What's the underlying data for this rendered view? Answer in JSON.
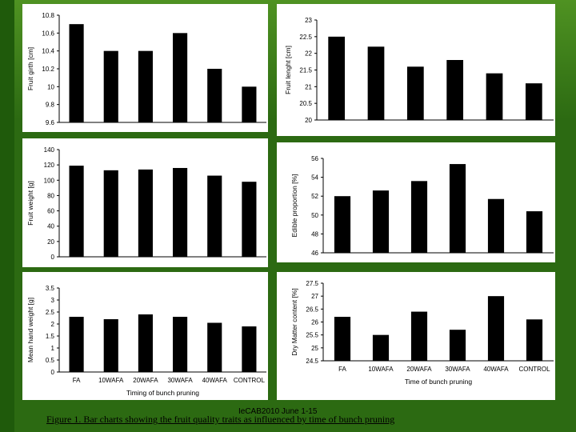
{
  "caption": "Figure 1. Bar charts showing the fruit quality traits as influenced by time of bunch pruning",
  "source": "IeCAB2010 June 1-15",
  "chart_data": [
    {
      "type": "bar",
      "ylabel": "Fruit girth [cm]",
      "xlabel": "",
      "ylim": [
        9.6,
        10.8
      ],
      "yticks": [
        "10.8",
        "10.6",
        "10.4",
        "10.2",
        "10",
        "9.8",
        "9.6"
      ],
      "categories": [
        "FA",
        "10WAFA",
        "20WAFA",
        "30WAFA",
        "40WAFA",
        "CONTROL"
      ],
      "values": [
        10.7,
        10.4,
        10.4,
        10.6,
        10.2,
        10.0
      ],
      "show_xticks": false
    },
    {
      "type": "bar",
      "ylabel": "Fruit lenght [cm]",
      "xlabel": "",
      "ylim": [
        20,
        23
      ],
      "yticks": [
        "23",
        "22.5",
        "22",
        "21.5",
        "21",
        "20.5",
        "20"
      ],
      "categories": [
        "FA",
        "10WAFA",
        "20WAFA",
        "30WAFA",
        "40WAFA",
        "CONTROL"
      ],
      "values": [
        22.5,
        22.2,
        21.6,
        21.8,
        21.4,
        21.1
      ],
      "show_xticks": false
    },
    {
      "type": "bar",
      "ylabel": "Fruit weight [g]",
      "xlabel": "",
      "ylim": [
        0,
        140
      ],
      "yticks": [
        "140",
        "120",
        "100",
        "80",
        "60",
        "40",
        "20",
        "0"
      ],
      "categories": [
        "FA",
        "10WAFA",
        "20WAFA",
        "30WAFA",
        "40WAFA",
        "CONTROL"
      ],
      "values": [
        119,
        113,
        114,
        116,
        106,
        98
      ],
      "show_xticks": false
    },
    {
      "type": "bar",
      "ylabel": "Edible proportion [%]",
      "xlabel": "",
      "ylim": [
        46,
        56
      ],
      "yticks": [
        "56",
        "54",
        "52",
        "50",
        "48",
        "46"
      ],
      "categories": [
        "FA",
        "10WAFA",
        "20WAFA",
        "30WAFA",
        "40WAFA",
        "CONTROL"
      ],
      "values": [
        52.0,
        52.6,
        53.6,
        55.4,
        51.7,
        50.4
      ],
      "show_xticks": false
    },
    {
      "type": "bar",
      "ylabel": "Mean hand weight [g]",
      "xlabel": "Timing of bunch pruning",
      "ylim": [
        0,
        3.5
      ],
      "yticks": [
        "3.5",
        "3",
        "2.5",
        "2",
        "1.5",
        "1",
        "0.5",
        "0"
      ],
      "categories": [
        "FA",
        "10WAFA",
        "20WAFA",
        "30WAFA",
        "40WAFA",
        "CONTROL"
      ],
      "values": [
        2.3,
        2.2,
        2.4,
        2.3,
        2.05,
        1.9
      ],
      "show_xticks": true
    },
    {
      "type": "bar",
      "ylabel": "Dry Matter content [%]",
      "xlabel": "Time of bunch pruning",
      "ylim": [
        24.5,
        27.5
      ],
      "yticks": [
        "27.5",
        "27",
        "26.5",
        "26",
        "25.5",
        "25",
        "24.5"
      ],
      "categories": [
        "FA",
        "10WAFA",
        "20WAFA",
        "30WAFA",
        "40WAFA",
        "CONTROL"
      ],
      "values": [
        26.2,
        25.5,
        26.4,
        25.7,
        27.0,
        26.1
      ],
      "show_xticks": true
    }
  ]
}
